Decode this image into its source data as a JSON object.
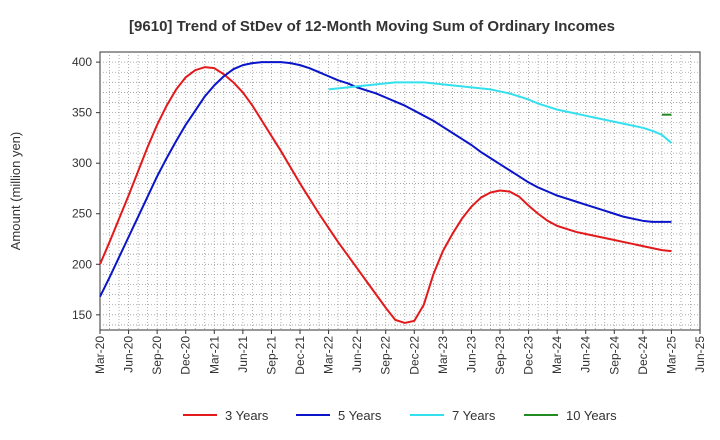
{
  "chart_data": {
    "type": "line",
    "title": "[9610]  Trend of StDev of 12-Month Moving Sum of Ordinary Incomes",
    "xlabel": "",
    "ylabel": "Amount (million yen)",
    "x_tick_labels": [
      "Mar-20",
      "Jun-20",
      "Sep-20",
      "Dec-20",
      "Mar-21",
      "Jun-21",
      "Sep-21",
      "Dec-21",
      "Mar-22",
      "Jun-22",
      "Sep-22",
      "Dec-22",
      "Mar-23",
      "Jun-23",
      "Sep-23",
      "Dec-23",
      "Mar-24",
      "Jun-24",
      "Sep-24",
      "Dec-24",
      "Mar-25",
      "Jun-25"
    ],
    "y_ticks": [
      150,
      200,
      250,
      300,
      350,
      400
    ],
    "ylim": [
      135,
      410
    ],
    "grid": true,
    "legend_position": "bottom",
    "series": [
      {
        "name": "3 Years",
        "color": "#e31a1c",
        "x": [
          "Mar-20",
          "Apr-20",
          "May-20",
          "Jun-20",
          "Jul-20",
          "Aug-20",
          "Sep-20",
          "Oct-20",
          "Nov-20",
          "Dec-20",
          "Jan-21",
          "Feb-21",
          "Mar-21",
          "Apr-21",
          "May-21",
          "Jun-21",
          "Jul-21",
          "Aug-21",
          "Sep-21",
          "Oct-21",
          "Nov-21",
          "Dec-21",
          "Jan-22",
          "Feb-22",
          "Mar-22",
          "Apr-22",
          "May-22",
          "Jun-22",
          "Jul-22",
          "Aug-22",
          "Sep-22",
          "Oct-22",
          "Nov-22",
          "Dec-22",
          "Jan-23",
          "Feb-23",
          "Mar-23",
          "Apr-23",
          "May-23",
          "Jun-23",
          "Jul-23",
          "Aug-23",
          "Sep-23",
          "Oct-23",
          "Nov-23",
          "Dec-23",
          "Jan-24",
          "Feb-24",
          "Mar-24",
          "Apr-24",
          "May-24",
          "Jun-24",
          "Jul-24",
          "Aug-24",
          "Sep-24",
          "Oct-24",
          "Nov-24",
          "Dec-24",
          "Jan-25",
          "Feb-25",
          "Mar-25"
        ],
        "values": [
          200,
          222,
          245,
          268,
          292,
          316,
          338,
          357,
          373,
          385,
          392,
          395,
          394,
          388,
          380,
          370,
          357,
          342,
          327,
          312,
          296,
          280,
          265,
          250,
          236,
          222,
          209,
          196,
          183,
          170,
          157,
          145,
          142,
          144,
          160,
          190,
          213,
          230,
          245,
          257,
          266,
          271,
          273,
          272,
          267,
          258,
          250,
          243,
          238,
          235,
          232,
          230,
          228,
          226,
          224,
          222,
          220,
          218,
          216,
          214,
          213
        ]
      },
      {
        "name": "5 Years",
        "color": "#0a14c8",
        "x": [
          "Mar-20",
          "Apr-20",
          "May-20",
          "Jun-20",
          "Jul-20",
          "Aug-20",
          "Sep-20",
          "Oct-20",
          "Nov-20",
          "Dec-20",
          "Jan-21",
          "Feb-21",
          "Mar-21",
          "Apr-21",
          "May-21",
          "Jun-21",
          "Jul-21",
          "Aug-21",
          "Sep-21",
          "Oct-21",
          "Nov-21",
          "Dec-21",
          "Jan-22",
          "Feb-22",
          "Mar-22",
          "Apr-22",
          "May-22",
          "Jun-22",
          "Jul-22",
          "Aug-22",
          "Sep-22",
          "Oct-22",
          "Nov-22",
          "Dec-22",
          "Jan-23",
          "Feb-23",
          "Mar-23",
          "Apr-23",
          "May-23",
          "Jun-23",
          "Jul-23",
          "Aug-23",
          "Sep-23",
          "Oct-23",
          "Nov-23",
          "Dec-23",
          "Jan-24",
          "Feb-24",
          "Mar-24",
          "Apr-24",
          "May-24",
          "Jun-24",
          "Jul-24",
          "Aug-24",
          "Sep-24",
          "Oct-24",
          "Nov-24",
          "Dec-24",
          "Jan-25",
          "Feb-25",
          "Mar-25"
        ],
        "values": [
          168,
          187,
          207,
          227,
          247,
          267,
          287,
          305,
          322,
          338,
          352,
          366,
          377,
          386,
          393,
          397,
          399,
          400,
          400,
          400,
          399,
          397,
          394,
          390,
          386,
          382,
          379,
          375,
          372,
          369,
          365,
          361,
          357,
          352,
          347,
          342,
          336,
          330,
          324,
          318,
          311,
          305,
          299,
          293,
          287,
          281,
          276,
          272,
          268,
          265,
          262,
          259,
          256,
          253,
          250,
          247,
          245,
          243,
          242,
          242,
          242
        ]
      },
      {
        "name": "7 Years",
        "color": "#33e0ee",
        "x": [
          "Mar-22",
          "Apr-22",
          "May-22",
          "Jun-22",
          "Jul-22",
          "Aug-22",
          "Sep-22",
          "Oct-22",
          "Nov-22",
          "Dec-22",
          "Jan-23",
          "Feb-23",
          "Mar-23",
          "Apr-23",
          "May-23",
          "Jun-23",
          "Jul-23",
          "Aug-23",
          "Sep-23",
          "Oct-23",
          "Nov-23",
          "Dec-23",
          "Jan-24",
          "Feb-24",
          "Mar-24",
          "Apr-24",
          "May-24",
          "Jun-24",
          "Jul-24",
          "Aug-24",
          "Sep-24",
          "Oct-24",
          "Nov-24",
          "Dec-24",
          "Jan-25",
          "Feb-25",
          "Mar-25"
        ],
        "values": [
          373,
          374,
          375,
          376,
          377,
          378,
          379,
          380,
          380,
          380,
          380,
          379,
          378,
          377,
          376,
          375,
          374,
          373,
          371,
          369,
          366,
          363,
          359,
          356,
          353,
          351,
          349,
          347,
          345,
          343,
          341,
          339,
          337,
          335,
          332,
          328,
          320
        ]
      },
      {
        "name": "10 Years",
        "color": "#228b22",
        "x": [
          "Feb-25",
          "Mar-25"
        ],
        "values": [
          348,
          348
        ]
      }
    ]
  }
}
